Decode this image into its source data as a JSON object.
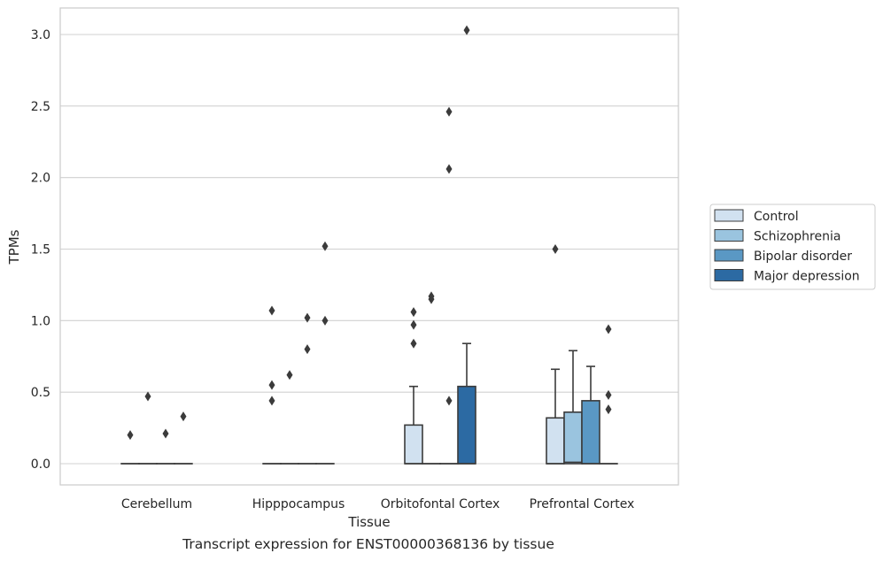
{
  "caption": "Transcript expression for ENST00000368136 by tissue",
  "chart_data": {
    "type": "box",
    "xlabel": "Tissue",
    "ylabel": "TPMs",
    "ylim": [
      -0.15,
      3.2
    ],
    "yticks": [
      0.0,
      0.5,
      1.0,
      1.5,
      2.0,
      2.5,
      3.0
    ],
    "ytick_labels": [
      "0.0",
      "0.5",
      "1.0",
      "1.5",
      "2.0",
      "2.5",
      "3.0"
    ],
    "grid": "horizontal",
    "legend_position": "right",
    "categories": [
      "Cerebellum",
      "Hipppocampus",
      "Orbitofontal Cortex",
      "Prefrontal Cortex"
    ],
    "series": [
      {
        "name": "Control",
        "color": "#d1e1f0",
        "boxes": [
          {
            "q1": 0,
            "median": 0,
            "q3": 0,
            "whisker_low": 0,
            "whisker_high": 0,
            "outliers": [
              0.2
            ]
          },
          {
            "q1": 0,
            "median": 0,
            "q3": 0,
            "whisker_low": 0,
            "whisker_high": 0,
            "outliers": [
              0.44,
              0.55,
              1.07
            ]
          },
          {
            "q1": 0,
            "median": 0,
            "q3": 0.27,
            "whisker_low": 0,
            "whisker_high": 0.54,
            "outliers": [
              0.84,
              0.97,
              1.06
            ]
          },
          {
            "q1": 0,
            "median": 0,
            "q3": 0.32,
            "whisker_low": 0,
            "whisker_high": 0.66,
            "outliers": [
              1.5
            ]
          }
        ]
      },
      {
        "name": "Schizophrenia",
        "color": "#9ac4df",
        "boxes": [
          {
            "q1": 0,
            "median": 0,
            "q3": 0,
            "whisker_low": 0,
            "whisker_high": 0,
            "outliers": [
              0.47
            ]
          },
          {
            "q1": 0,
            "median": 0,
            "q3": 0,
            "whisker_low": 0,
            "whisker_high": 0,
            "outliers": [
              0.62
            ]
          },
          {
            "q1": 0,
            "median": 0,
            "q3": 0,
            "whisker_low": 0,
            "whisker_high": 0,
            "outliers": [
              1.15,
              1.17
            ]
          },
          {
            "q1": 0,
            "median": 0.01,
            "q3": 0.36,
            "whisker_low": 0,
            "whisker_high": 0.79,
            "outliers": []
          }
        ]
      },
      {
        "name": "Bipolar disorder",
        "color": "#5a98c4",
        "boxes": [
          {
            "q1": 0,
            "median": 0,
            "q3": 0,
            "whisker_low": 0,
            "whisker_high": 0,
            "outliers": [
              0.21
            ]
          },
          {
            "q1": 0,
            "median": 0,
            "q3": 0,
            "whisker_low": 0,
            "whisker_high": 0,
            "outliers": [
              0.8,
              1.02
            ]
          },
          {
            "q1": 0,
            "median": 0,
            "q3": 0,
            "whisker_low": 0,
            "whisker_high": 0,
            "outliers": [
              0.44,
              2.06,
              2.46
            ]
          },
          {
            "q1": 0,
            "median": 0,
            "q3": 0.44,
            "whisker_low": 0,
            "whisker_high": 0.68,
            "outliers": []
          }
        ]
      },
      {
        "name": "Major depression",
        "color": "#2c6aa3",
        "boxes": [
          {
            "q1": 0,
            "median": 0,
            "q3": 0,
            "whisker_low": 0,
            "whisker_high": 0,
            "outliers": [
              0.33
            ]
          },
          {
            "q1": 0,
            "median": 0,
            "q3": 0,
            "whisker_low": 0,
            "whisker_high": 0,
            "outliers": [
              1.0,
              1.52
            ]
          },
          {
            "q1": 0,
            "median": 0,
            "q3": 0.54,
            "whisker_low": 0,
            "whisker_high": 0.84,
            "outliers": [
              3.03
            ]
          },
          {
            "q1": 0,
            "median": 0,
            "q3": 0,
            "whisker_low": 0,
            "whisker_high": 0,
            "outliers": [
              0.38,
              0.48,
              0.94
            ]
          }
        ]
      }
    ]
  }
}
